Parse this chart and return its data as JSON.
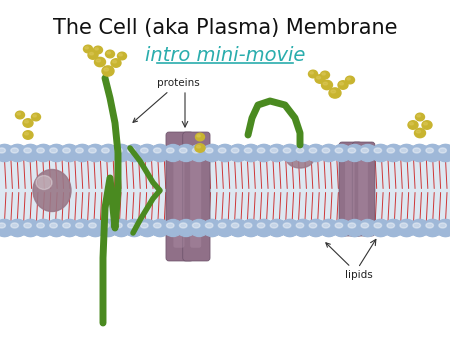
{
  "title_line1": "The Cell (aka Plasma) Membrane",
  "title_line2": "intro mini-movie",
  "title_color": "#111111",
  "link_color": "#2aadad",
  "title_fontsize": 15,
  "link_fontsize": 14,
  "annotation_fontsize": 7.5,
  "bg_color": "#ffffff",
  "membrane_head_color": "#9fb8d8",
  "membrane_head_highlight": "#c8d8ee",
  "membrane_head_shadow": "#7090b0",
  "lipid_tail_color_1": "#cc2222",
  "lipid_tail_color_2": "#dd4444",
  "core_fill_color": "#dde8f2",
  "protein_channel_color": "#907088",
  "protein_highlight": "#b090a8",
  "protein_shadow": "#6a5068",
  "green_protein_color": "#4a8a20",
  "glycolipid_color": "#c8b430",
  "glycolipid_highlight": "#e0cc60",
  "embedded_protein_color": "#9a7888",
  "figsize": [
    4.5,
    3.38
  ],
  "dpi": 100
}
